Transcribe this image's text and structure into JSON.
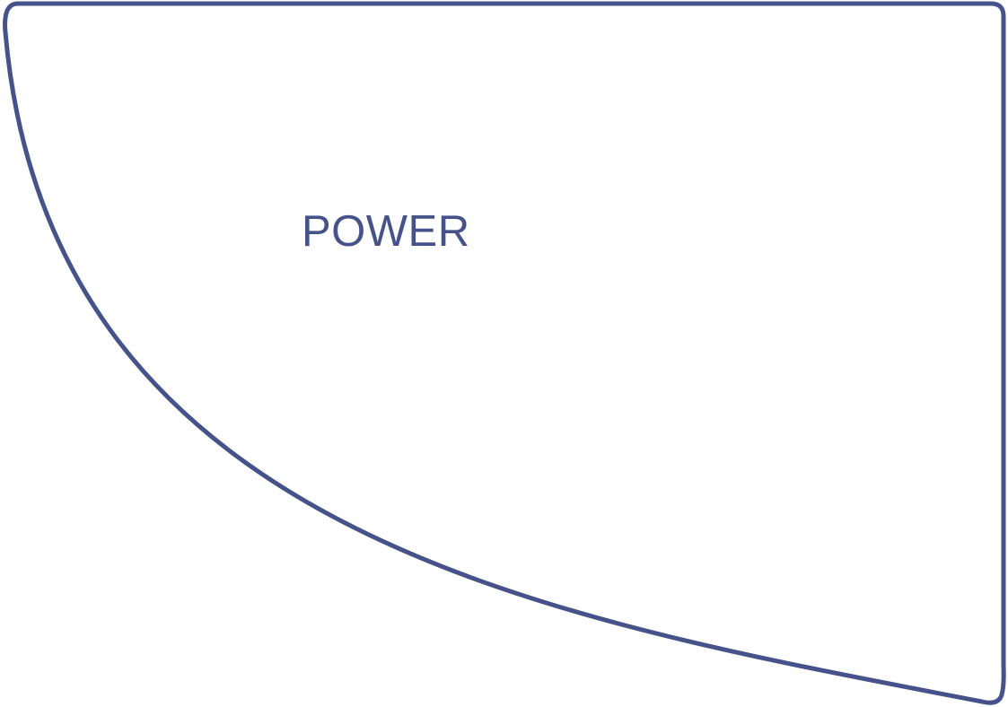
{
  "diagram": {
    "shape_label": "POWER",
    "stroke_color": "#45538a",
    "text_color": "#45538a",
    "background_color": "#ffffff"
  }
}
